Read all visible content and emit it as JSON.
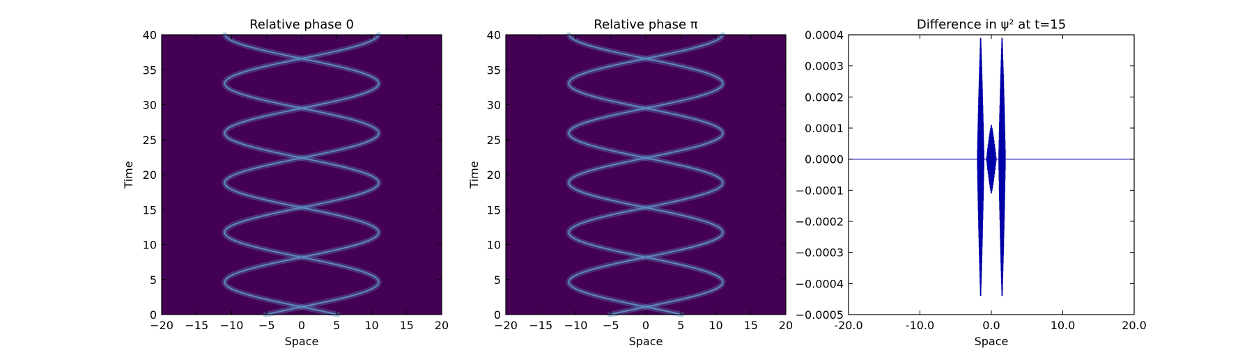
{
  "chart_data": [
    {
      "type": "heatmap",
      "title": "Relative phase 0",
      "xlabel": "Space",
      "ylabel": "Time",
      "xlim": [
        -20,
        20
      ],
      "ylim": [
        0,
        40
      ],
      "x_ticks": [
        -20,
        -15,
        -10,
        -5,
        0,
        5,
        10,
        15,
        20
      ],
      "y_ticks": [
        0,
        5,
        10,
        15,
        20,
        25,
        30,
        35,
        40
      ],
      "x_tick_labels": [
        "−20",
        "−15",
        "−10",
        "−5",
        "0",
        "5",
        "10",
        "15",
        "20"
      ],
      "y_tick_labels": [
        "0",
        "5",
        "10",
        "15",
        "20",
        "25",
        "30",
        "35",
        "40"
      ],
      "background_color": "#440154",
      "trace_color": "#5c8bbf",
      "trajectory": {
        "amplitude": 11,
        "phase": 1.1,
        "period": 14.2,
        "center": 0
      }
    },
    {
      "type": "heatmap",
      "title": "Relative phase π",
      "xlabel": "Space",
      "ylabel": "Time",
      "xlim": [
        -20,
        20
      ],
      "ylim": [
        0,
        40
      ],
      "x_ticks": [
        -20,
        -15,
        -10,
        -5,
        0,
        5,
        10,
        15,
        20
      ],
      "y_ticks": [
        0,
        5,
        10,
        15,
        20,
        25,
        30,
        35,
        40
      ],
      "x_tick_labels": [
        "−20",
        "−15",
        "−10",
        "−5",
        "0",
        "5",
        "10",
        "15",
        "20"
      ],
      "y_tick_labels": [
        "0",
        "5",
        "10",
        "15",
        "20",
        "25",
        "30",
        "35",
        "40"
      ],
      "background_color": "#440154",
      "trace_color": "#5c8bbf",
      "trajectory": {
        "amplitude": 11,
        "phase": 1.1,
        "period": 14.2,
        "center": 0
      }
    },
    {
      "type": "line",
      "title": "Difference in ψ² at t=15",
      "xlabel": "Space",
      "ylabel": "",
      "xlim": [
        -20,
        20
      ],
      "ylim": [
        -0.0005,
        0.0004
      ],
      "x_ticks": [
        -20,
        -10,
        0,
        10,
        20
      ],
      "y_ticks": [
        -0.0005,
        -0.0004,
        -0.0003,
        -0.0002,
        -0.0001,
        0.0,
        0.0001,
        0.0002,
        0.0003,
        0.0004
      ],
      "x_tick_labels": [
        "-20.0",
        "-10.0",
        "0.0",
        "10.0",
        "20.0"
      ],
      "y_tick_labels": [
        "−0.0005",
        "−0.0004",
        "−0.0003",
        "−0.0002",
        "−0.0001",
        "0.0000",
        "0.0001",
        "0.0002",
        "0.0003",
        "0.0004"
      ],
      "line_color": "#0000a8",
      "spikes": [
        {
          "x": -1.5,
          "min": -0.00044,
          "max": 0.00039
        },
        {
          "x": 1.5,
          "min": -0.00044,
          "max": 0.00039
        },
        {
          "x": 0.0,
          "min": -0.00011,
          "max": 0.00011
        }
      ]
    }
  ]
}
